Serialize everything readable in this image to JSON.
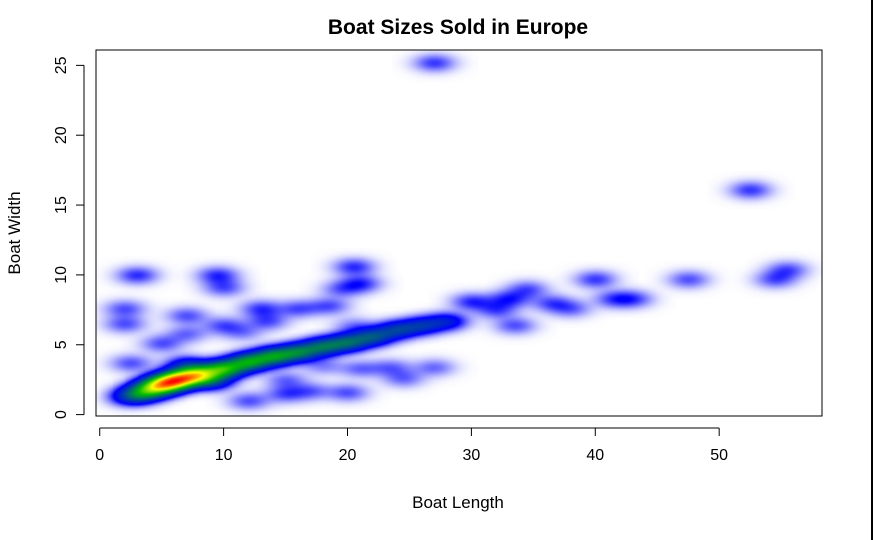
{
  "chart_data": {
    "type": "heatmap",
    "subtype": "smoothed-density-scatter",
    "title": "Boat Sizes Sold in Europe",
    "xlabel": "Boat Length",
    "ylabel": "Boat Width",
    "xlim": [
      -0.3,
      58.3
    ],
    "ylim": [
      -0.1,
      26.1
    ],
    "x_ticks": [
      0,
      10,
      20,
      30,
      40,
      50
    ],
    "y_ticks": [
      0,
      5,
      10,
      15,
      20,
      25
    ],
    "grid": false,
    "legend": "none",
    "colormap": [
      "#ffffff",
      "#0000ff",
      "#00bb00",
      "#ffff00",
      "#ff0000"
    ],
    "points": [
      [
        6.5,
        2.6,
        1.0
      ],
      [
        5.5,
        2.3,
        0.9
      ],
      [
        8.0,
        2.9,
        0.9
      ],
      [
        4.5,
        2.0,
        0.75
      ],
      [
        10.0,
        3.3,
        0.8
      ],
      [
        12.0,
        3.8,
        0.7
      ],
      [
        14.0,
        4.2,
        0.65
      ],
      [
        16.0,
        4.5,
        0.55
      ],
      [
        18.0,
        4.9,
        0.5
      ],
      [
        20.0,
        5.2,
        0.48
      ],
      [
        22.0,
        5.6,
        0.42
      ],
      [
        24.0,
        6.1,
        0.35
      ],
      [
        26.0,
        6.4,
        0.3
      ],
      [
        28.0,
        6.7,
        0.25
      ],
      [
        3.5,
        1.6,
        0.45
      ],
      [
        2.5,
        1.3,
        0.3
      ],
      [
        9.0,
        2.4,
        0.3
      ],
      [
        7.0,
        3.6,
        0.25
      ],
      [
        3.0,
        10.0,
        0.15
      ],
      [
        9.5,
        10.0,
        0.15
      ],
      [
        10.0,
        9.1,
        0.12
      ],
      [
        2.0,
        7.6,
        0.12
      ],
      [
        2.0,
        6.5,
        0.12
      ],
      [
        7.0,
        7.1,
        0.12
      ],
      [
        10.0,
        6.4,
        0.12
      ],
      [
        13.0,
        7.6,
        0.14
      ],
      [
        13.5,
        6.7,
        0.12
      ],
      [
        16.0,
        7.6,
        0.12
      ],
      [
        18.5,
        7.8,
        0.12
      ],
      [
        20.5,
        10.6,
        0.15
      ],
      [
        21.0,
        9.4,
        0.15
      ],
      [
        19.5,
        9.0,
        0.1
      ],
      [
        30.0,
        8.1,
        0.15
      ],
      [
        33.0,
        8.3,
        0.15
      ],
      [
        34.5,
        9.0,
        0.12
      ],
      [
        36.5,
        8.0,
        0.12
      ],
      [
        40.0,
        9.7,
        0.14
      ],
      [
        41.5,
        8.3,
        0.12
      ],
      [
        43.0,
        8.3,
        0.12
      ],
      [
        38.0,
        7.6,
        0.1
      ],
      [
        32.0,
        7.5,
        0.12
      ],
      [
        33.5,
        6.4,
        0.12
      ],
      [
        47.5,
        9.7,
        0.12
      ],
      [
        55.5,
        10.4,
        0.12
      ],
      [
        54.5,
        9.7,
        0.12
      ],
      [
        52.5,
        16.1,
        0.14
      ],
      [
        27.0,
        25.2,
        0.14
      ],
      [
        2.5,
        3.7,
        0.12
      ],
      [
        5.0,
        5.1,
        0.12
      ],
      [
        7.0,
        5.8,
        0.1
      ],
      [
        12.0,
        1.0,
        0.12
      ],
      [
        15.0,
        1.5,
        0.12
      ],
      [
        17.0,
        1.7,
        0.1
      ],
      [
        20.0,
        1.6,
        0.12
      ],
      [
        21.0,
        3.3,
        0.1
      ],
      [
        23.5,
        3.4,
        0.1
      ],
      [
        24.5,
        2.6,
        0.1
      ],
      [
        27.0,
        3.4,
        0.1
      ],
      [
        15.0,
        2.5,
        0.1
      ],
      [
        18.0,
        3.5,
        0.08
      ],
      [
        11.5,
        5.9,
        0.08
      ],
      [
        20.5,
        6.4,
        0.08
      ]
    ]
  }
}
